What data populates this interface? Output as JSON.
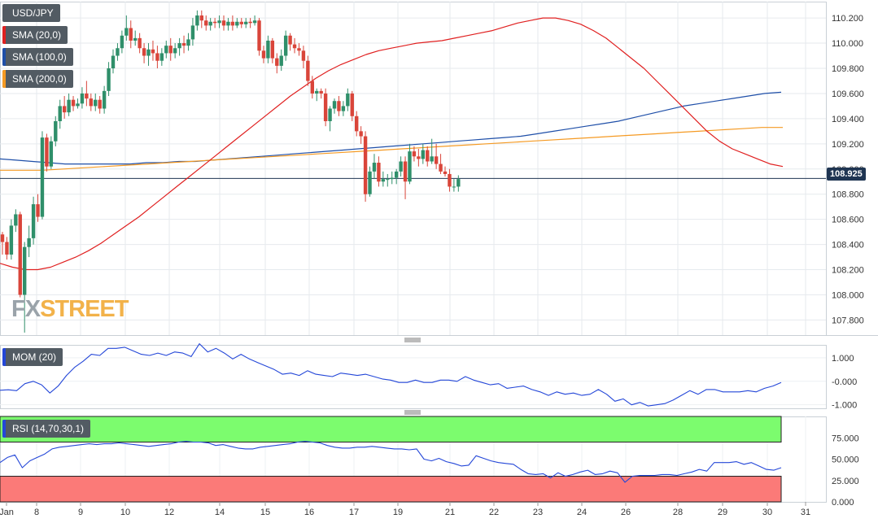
{
  "labels": {
    "symbol": "USD/JPY",
    "sma20": "SMA (20,0)",
    "sma100": "SMA (100,0)",
    "sma200": "SMA (200,0)",
    "mom": "MOM (20)",
    "rsi": "RSI (14,70,30,1)",
    "price_tag": "108.925",
    "logo_fx": "FX",
    "logo_street": "STREET"
  },
  "colors": {
    "up": "#2f8f6a",
    "down": "#d9453a",
    "sma20": "#e02020",
    "sma100": "#1f4fa8",
    "sma200": "#f59a23",
    "mom": "#2447d8",
    "rsi": "#2447d8",
    "overbought_zone": "#7cfc6e",
    "oversold_zone": "#fb7a78",
    "last_price_line": "#1f3552"
  },
  "chart_data": [
    {
      "type": "candlestick",
      "title": "USD/JPY",
      "x_ticks": [
        "Jan",
        "8",
        "9",
        "10",
        "12",
        "14",
        "15",
        "16",
        "17",
        "19",
        "21",
        "22",
        "23",
        "24",
        "26",
        "28",
        "29",
        "30",
        "31"
      ],
      "y_ticks": [
        "107.800",
        "108.000",
        "108.200",
        "108.400",
        "108.600",
        "108.800",
        "109.000",
        "109.200",
        "109.400",
        "109.600",
        "109.800",
        "110.000",
        "110.200"
      ],
      "ylim": [
        107.68,
        110.33
      ],
      "last_price": 108.925,
      "grid": true,
      "series": [
        {
          "name": "SMA (20,0)",
          "values": [
            108.25,
            108.22,
            108.2,
            108.2,
            108.22,
            108.26,
            108.3,
            108.35,
            108.41,
            108.48,
            108.55,
            108.62,
            108.7,
            108.78,
            108.86,
            108.94,
            109.02,
            109.1,
            109.18,
            109.26,
            109.34,
            109.42,
            109.5,
            109.58,
            109.65,
            109.72,
            109.78,
            109.83,
            109.87,
            109.91,
            109.94,
            109.96,
            109.98,
            110.0,
            110.01,
            110.02,
            110.04,
            110.06,
            110.08,
            110.1,
            110.13,
            110.16,
            110.18,
            110.2,
            110.2,
            110.18,
            110.15,
            110.1,
            110.04,
            109.96,
            109.88,
            109.8,
            109.7,
            109.6,
            109.5,
            109.4,
            109.3,
            109.22,
            109.16,
            109.12,
            109.08,
            109.04,
            109.02
          ]
        },
        {
          "name": "SMA (100,0)",
          "values": [
            109.08,
            109.07,
            109.06,
            109.05,
            109.04,
            109.04,
            109.04,
            109.04,
            109.04,
            109.05,
            109.05,
            109.06,
            109.06,
            109.07,
            109.08,
            109.09,
            109.1,
            109.11,
            109.12,
            109.13,
            109.14,
            109.15,
            109.16,
            109.17,
            109.18,
            109.19,
            109.2,
            109.21,
            109.22,
            109.23,
            109.24,
            109.25,
            109.26,
            109.28,
            109.3,
            109.32,
            109.34,
            109.36,
            109.38,
            109.41,
            109.44,
            109.47,
            109.5,
            109.52,
            109.54,
            109.56,
            109.58,
            109.6,
            109.61
          ]
        },
        {
          "name": "SMA (200,0)",
          "values": [
            108.99,
            108.99,
            108.99,
            109.0,
            109.01,
            109.02,
            109.03,
            109.04,
            109.05,
            109.06,
            109.07,
            109.08,
            109.09,
            109.1,
            109.11,
            109.12,
            109.13,
            109.14,
            109.15,
            109.16,
            109.17,
            109.18,
            109.19,
            109.2,
            109.21,
            109.22,
            109.23,
            109.24,
            109.25,
            109.26,
            109.27,
            109.28,
            109.29,
            109.3,
            109.31,
            109.32,
            109.33,
            109.33
          ]
        }
      ],
      "candles": [
        [
          108.48,
          108.42,
          108.5,
          108.32
        ],
        [
          108.42,
          108.32,
          108.46,
          108.28
        ],
        [
          108.32,
          108.55,
          108.6,
          108.28
        ],
        [
          108.55,
          108.64,
          108.68,
          108.5
        ],
        [
          108.64,
          108.0,
          108.66,
          107.98
        ],
        [
          108.0,
          108.38,
          108.42,
          107.7
        ],
        [
          108.38,
          108.45,
          108.55,
          108.3
        ],
        [
          108.45,
          108.72,
          108.78,
          108.4
        ],
        [
          108.72,
          108.62,
          108.8,
          108.58
        ],
        [
          108.62,
          109.25,
          109.3,
          108.6
        ],
        [
          109.25,
          109.02,
          109.28,
          108.98
        ],
        [
          109.02,
          109.22,
          109.26,
          109.0
        ],
        [
          109.22,
          109.38,
          109.42,
          109.18
        ],
        [
          109.38,
          109.5,
          109.55,
          109.32
        ],
        [
          109.5,
          109.45,
          109.58,
          109.4
        ],
        [
          109.45,
          109.55,
          109.6,
          109.42
        ],
        [
          109.55,
          109.5,
          109.58,
          109.46
        ],
        [
          109.5,
          109.52,
          109.56,
          109.48
        ],
        [
          109.52,
          109.6,
          109.65,
          109.48
        ],
        [
          109.6,
          109.56,
          109.7,
          109.5
        ],
        [
          109.56,
          109.5,
          109.6,
          109.46
        ],
        [
          109.5,
          109.55,
          109.6,
          109.46
        ],
        [
          109.55,
          109.48,
          109.58,
          109.44
        ],
        [
          109.48,
          109.62,
          109.66,
          109.44
        ],
        [
          109.62,
          109.8,
          109.85,
          109.58
        ],
        [
          109.8,
          109.9,
          109.95,
          109.76
        ],
        [
          109.9,
          109.96,
          110.0,
          109.86
        ],
        [
          109.96,
          110.06,
          110.1,
          109.92
        ],
        [
          110.06,
          110.12,
          110.22,
          110.02
        ],
        [
          110.12,
          110.02,
          110.18,
          109.96
        ],
        [
          110.02,
          110.04,
          110.1,
          109.98
        ],
        [
          110.04,
          109.96,
          110.08,
          109.92
        ],
        [
          109.96,
          109.9,
          110.0,
          109.84
        ],
        [
          109.9,
          109.95,
          110.0,
          109.82
        ],
        [
          109.95,
          109.92,
          110.02,
          109.86
        ],
        [
          109.92,
          109.86,
          109.98,
          109.8
        ],
        [
          109.86,
          109.92,
          109.96,
          109.82
        ],
        [
          109.92,
          109.98,
          110.02,
          109.88
        ],
        [
          109.98,
          109.92,
          110.04,
          109.86
        ],
        [
          109.92,
          109.96,
          110.0,
          109.88
        ],
        [
          109.96,
          110.0,
          110.04,
          109.9
        ],
        [
          110.0,
          109.98,
          110.06,
          109.92
        ],
        [
          109.98,
          110.03,
          110.08,
          109.94
        ],
        [
          110.03,
          110.14,
          110.2,
          109.98
        ],
        [
          110.14,
          110.22,
          110.26,
          110.1
        ],
        [
          110.22,
          110.18,
          110.26,
          110.12
        ],
        [
          110.18,
          110.14,
          110.22,
          110.1
        ],
        [
          110.14,
          110.17,
          110.2,
          110.1
        ],
        [
          110.17,
          110.16,
          110.2,
          110.12
        ],
        [
          110.16,
          110.18,
          110.22,
          110.12
        ],
        [
          110.18,
          110.14,
          110.22,
          110.1
        ],
        [
          110.14,
          110.17,
          110.2,
          110.1
        ],
        [
          110.17,
          110.14,
          110.22,
          110.1
        ],
        [
          110.14,
          110.17,
          110.2,
          110.12
        ],
        [
          110.17,
          110.15,
          110.2,
          110.12
        ],
        [
          110.15,
          110.17,
          110.2,
          110.12
        ],
        [
          110.17,
          110.16,
          110.2,
          110.12
        ],
        [
          110.16,
          110.18,
          110.22,
          110.14
        ],
        [
          110.18,
          109.94,
          110.2,
          109.9
        ],
        [
          109.94,
          109.88,
          109.98,
          109.84
        ],
        [
          109.88,
          110.02,
          110.06,
          109.84
        ],
        [
          110.02,
          109.88,
          110.04,
          109.84
        ],
        [
          109.88,
          109.82,
          109.92,
          109.76
        ],
        [
          109.82,
          109.9,
          109.95,
          109.78
        ],
        [
          109.9,
          110.06,
          110.1,
          109.86
        ],
        [
          110.06,
          109.99,
          110.08,
          109.94
        ],
        [
          109.99,
          109.96,
          110.04,
          109.92
        ],
        [
          109.96,
          109.94,
          110.0,
          109.9
        ],
        [
          109.94,
          109.86,
          109.98,
          109.8
        ],
        [
          109.86,
          109.7,
          109.9,
          109.66
        ],
        [
          109.7,
          109.6,
          109.74,
          109.56
        ],
        [
          109.6,
          109.62,
          109.64,
          109.54
        ],
        [
          109.62,
          109.6,
          109.64,
          109.56
        ],
        [
          109.6,
          109.38,
          109.64,
          109.34
        ],
        [
          109.38,
          109.48,
          109.5,
          109.3
        ],
        [
          109.48,
          109.54,
          109.56,
          109.44
        ],
        [
          109.54,
          109.46,
          109.58,
          109.42
        ],
        [
          109.46,
          109.5,
          109.54,
          109.42
        ],
        [
          109.5,
          109.6,
          109.64,
          109.46
        ],
        [
          109.6,
          109.42,
          109.62,
          109.38
        ],
        [
          109.42,
          109.3,
          109.46,
          109.26
        ],
        [
          109.3,
          109.26,
          109.34,
          109.2
        ],
        [
          109.26,
          108.8,
          109.3,
          108.74
        ],
        [
          108.8,
          108.98,
          109.02,
          108.78
        ],
        [
          108.98,
          109.05,
          109.12,
          108.92
        ],
        [
          109.05,
          108.9,
          109.1,
          108.86
        ],
        [
          108.9,
          108.92,
          108.98,
          108.86
        ],
        [
          108.92,
          108.92,
          108.96,
          108.86
        ],
        [
          108.92,
          108.93,
          108.98,
          108.88
        ],
        [
          108.93,
          108.98,
          109.0,
          108.88
        ],
        [
          108.98,
          109.06,
          109.1,
          108.94
        ],
        [
          109.06,
          108.9,
          109.1,
          108.76
        ],
        [
          108.9,
          109.14,
          109.2,
          108.88
        ],
        [
          109.14,
          109.1,
          109.18,
          109.06
        ],
        [
          109.1,
          109.08,
          109.16,
          109.02
        ],
        [
          109.08,
          109.15,
          109.2,
          109.04
        ],
        [
          109.15,
          109.06,
          109.18,
          109.02
        ],
        [
          109.06,
          109.1,
          109.24,
          109.04
        ],
        [
          109.1,
          109.04,
          109.2,
          109.0
        ],
        [
          109.04,
          108.98,
          109.12,
          108.96
        ],
        [
          108.98,
          108.96,
          109.02,
          108.94
        ],
        [
          108.96,
          108.86,
          109.0,
          108.82
        ],
        [
          108.86,
          108.86,
          108.92,
          108.82
        ],
        [
          108.86,
          108.92,
          108.95,
          108.82
        ]
      ]
    },
    {
      "type": "line",
      "title": "MOM (20)",
      "y_ticks": [
        "1.000",
        "-0.000",
        "-1.000"
      ],
      "ylim": [
        -1.15,
        1.55
      ],
      "series": [
        {
          "name": "MOM (20)",
          "values": [
            -0.38,
            -0.36,
            -0.4,
            -0.1,
            0.0,
            -0.15,
            -0.5,
            -0.2,
            0.25,
            0.6,
            0.85,
            1.15,
            1.1,
            1.4,
            1.4,
            1.45,
            1.3,
            1.15,
            1.1,
            1.2,
            1.1,
            1.25,
            1.2,
            1.05,
            1.6,
            1.25,
            1.4,
            1.2,
            0.95,
            1.15,
            0.95,
            0.8,
            0.65,
            0.5,
            0.3,
            0.35,
            0.25,
            0.45,
            0.3,
            0.25,
            0.2,
            0.35,
            0.3,
            0.25,
            0.3,
            0.2,
            0.1,
            0.05,
            -0.05,
            -0.05,
            0.05,
            -0.05,
            -0.05,
            0.05,
            0.05,
            0.0,
            0.2,
            0.05,
            -0.05,
            -0.15,
            -0.1,
            -0.3,
            -0.25,
            -0.2,
            -0.35,
            -0.45,
            -0.6,
            -0.45,
            -0.55,
            -0.5,
            -0.6,
            -0.55,
            -0.35,
            -0.55,
            -0.85,
            -0.75,
            -1.0,
            -0.9,
            -1.05,
            -1.0,
            -0.95,
            -0.8,
            -0.6,
            -0.4,
            -0.55,
            -0.35,
            -0.35,
            -0.45,
            -0.45,
            -0.45,
            -0.4,
            -0.45,
            -0.3,
            -0.2,
            -0.05
          ]
        }
      ]
    },
    {
      "type": "line",
      "title": "RSI (14,70,30,1)",
      "y_ticks": [
        "75.000",
        "50.000",
        "25.000",
        "0.000"
      ],
      "ylim": [
        0,
        100
      ],
      "overbought": 70,
      "oversold": 30,
      "series": [
        {
          "name": "RSI (14,70,30,1)",
          "values": [
            46,
            52,
            55,
            40,
            48,
            52,
            56,
            62,
            64,
            65,
            66,
            67,
            68,
            67,
            68,
            68,
            69,
            68,
            67,
            66,
            65,
            66,
            67,
            68,
            70,
            71,
            70,
            70,
            69,
            66,
            67,
            65,
            63,
            62,
            62,
            64,
            65,
            66,
            67,
            68,
            70,
            71,
            70,
            69,
            66,
            64,
            63,
            63,
            64,
            64,
            65,
            64,
            63,
            62,
            62,
            61,
            62,
            50,
            48,
            51,
            47,
            45,
            42,
            43,
            54,
            51,
            48,
            46,
            45,
            44,
            38,
            33,
            32,
            33,
            28,
            34,
            30,
            32,
            35,
            37,
            32,
            33,
            36,
            34,
            23,
            30,
            31,
            31,
            31,
            32,
            32,
            31,
            33,
            35,
            38,
            36,
            46,
            46,
            46,
            47,
            44,
            46,
            42,
            38,
            37,
            40
          ]
        }
      ]
    }
  ]
}
